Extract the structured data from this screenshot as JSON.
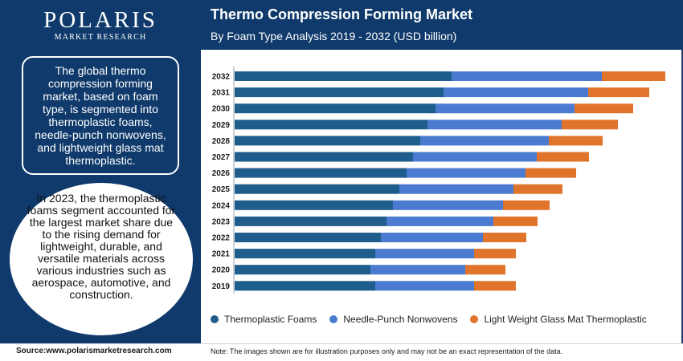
{
  "header": {
    "logo_name": "POLARIS",
    "logo_sub": "MARKET RESEARCH",
    "title": "Thermo Compression Forming Market",
    "subtitle": "By Foam Type Analysis 2019 - 2032 (USD billion)"
  },
  "sidebar": {
    "summary": "The global thermo compression forming market, based on foam type, is segmented into thermoplastic foams, needle-punch nonwovens, and lightweight glass mat thermoplastic.",
    "highlight": "In 2023, the thermoplastic foams segment accounted for the largest market share due to the rising demand for lightweight, durable, and versatile materials across various industries such as aerospace, automotive, and construction."
  },
  "footer": {
    "source": "Source:www.polarismarketresearch.com",
    "note": "Note: The images shown are for illustration purposes only and may not be an exact representation of the data."
  },
  "colors": {
    "header_bg": "#0f3a6b",
    "series_1": "#1f5d8c",
    "series_2": "#4a7bd0",
    "series_3": "#e0742b"
  },
  "chart_data": {
    "type": "bar",
    "orientation": "horizontal",
    "stacked": true,
    "grid": false,
    "legend_position": "bottom",
    "categories": [
      "2032",
      "2031",
      "2030",
      "2029",
      "2028",
      "2027",
      "2026",
      "2025",
      "2024",
      "2023",
      "2022",
      "2021",
      "2020",
      "2019"
    ],
    "series": [
      {
        "name": "Thermoplastic Foams",
        "values": [
          270,
          260,
          250,
          240,
          231,
          222,
          214,
          205,
          197,
          189,
          182,
          175,
          169,
          175
        ]
      },
      {
        "name": "Needle-Punch Nonwovens",
        "values": [
          187,
          180,
          173,
          167,
          160,
          154,
          148,
          142,
          137,
          133,
          127,
          123,
          118,
          123
        ]
      },
      {
        "name": "Light Weight Glass Mat Thermoplastic",
        "values": [
          79,
          76,
          73,
          70,
          67,
          65,
          63,
          61,
          58,
          55,
          54,
          52,
          50,
          52
        ]
      }
    ]
  }
}
